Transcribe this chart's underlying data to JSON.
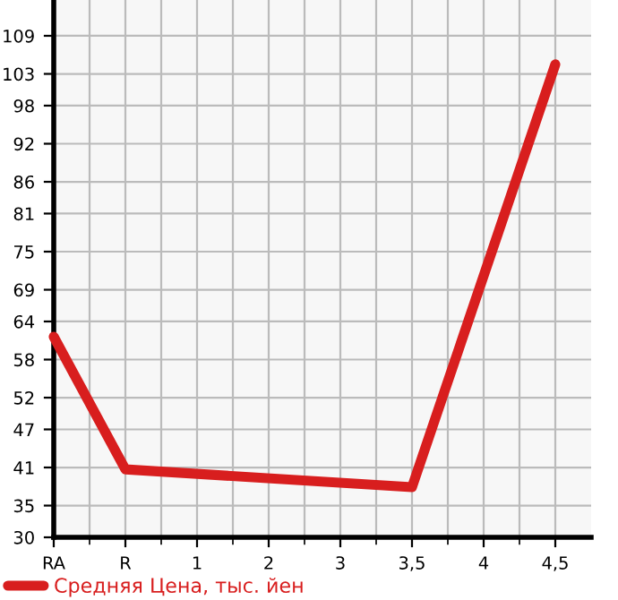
{
  "chart_data": {
    "type": "line",
    "categories": [
      "RA",
      "R",
      "1",
      "2",
      "3",
      "3,5",
      "4",
      "4,5"
    ],
    "series": [
      {
        "name": "Средняя Цена, тыс. йен",
        "color": "#d81e1e",
        "values": [
          61.6,
          40.7,
          null,
          null,
          null,
          37.9,
          null,
          104.5
        ]
      }
    ],
    "ylim": [
      30,
      114.64
    ],
    "yticks": [
      30,
      35,
      41,
      47,
      52,
      58,
      64,
      69,
      75,
      81,
      86,
      92,
      98,
      103,
      109
    ],
    "grid": true,
    "legend": "bottom left",
    "marker": "none",
    "line_style": "solid"
  }
}
